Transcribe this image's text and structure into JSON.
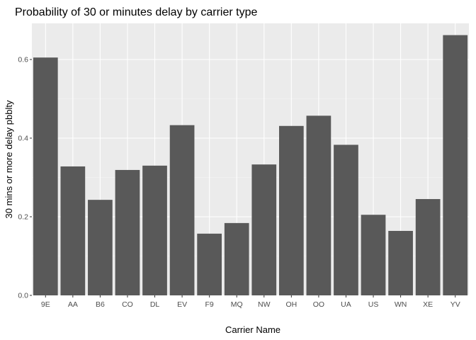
{
  "chart_data": {
    "type": "bar",
    "title": "Probability of 30 or minutes delay by carrier type",
    "xlabel": "Carrier Name",
    "ylabel": "30 mins or more delay pbblty",
    "categories": [
      "9E",
      "AA",
      "B6",
      "CO",
      "DL",
      "EV",
      "F9",
      "MQ",
      "NW",
      "OH",
      "OO",
      "UA",
      "US",
      "WN",
      "XE",
      "YV"
    ],
    "values": [
      0.605,
      0.328,
      0.243,
      0.319,
      0.33,
      0.433,
      0.157,
      0.184,
      0.333,
      0.431,
      0.457,
      0.383,
      0.205,
      0.164,
      0.245,
      0.662
    ],
    "ylim": [
      0,
      0.7
    ],
    "yticks": [
      0.0,
      0.2,
      0.4,
      0.6
    ],
    "ytick_labels": [
      "0.0",
      "0.2",
      "0.4",
      "0.6"
    ],
    "grid": true,
    "legend": "none",
    "colors": {
      "bar": "#595959",
      "panel_background": "#ebebeb",
      "grid_major": "#ffffff",
      "tick_text": "#4d4d4d"
    }
  }
}
